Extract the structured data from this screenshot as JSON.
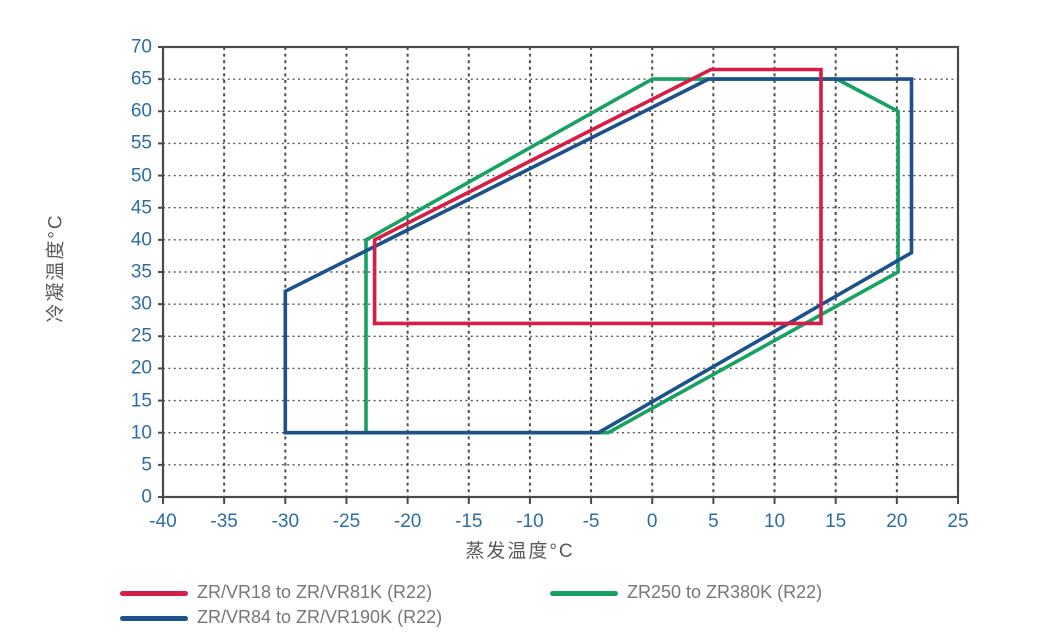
{
  "axes": {
    "x_title": "蒸发温度°C",
    "y_title": "冷凝温度°C"
  },
  "legend": {
    "items": [
      {
        "label": "ZR/VR18 to ZR/VR81K (R22)",
        "color": "#d51d45"
      },
      {
        "label": "ZR/VR84 to ZR/VR190K (R22)",
        "color": "#1c5189"
      },
      {
        "label": "ZR250 to ZR380K (R22)",
        "color": "#17a163"
      }
    ]
  },
  "colors": {
    "tick_text": "#2e6ca6",
    "axis_text": "#58595b",
    "legend_text": "#76777a",
    "border": "#4a4a4a",
    "grid": "#2f2f2f"
  },
  "chart_data": {
    "type": "line",
    "title": "",
    "xlabel": "蒸发温度°C",
    "ylabel": "冷凝温度°C",
    "xlim": [
      -40,
      25
    ],
    "ylim": [
      0,
      70
    ],
    "xticks": [
      -40,
      -35,
      -30,
      -25,
      -20,
      -15,
      -10,
      -5,
      0,
      5,
      10,
      15,
      20,
      25
    ],
    "yticks": [
      0,
      5,
      10,
      15,
      20,
      25,
      30,
      35,
      40,
      45,
      50,
      55,
      60,
      65,
      70
    ],
    "grid": true,
    "legend_position": "bottom",
    "series": [
      {
        "name": "ZR/VR18 to ZR/VR81K (R22)",
        "color": "#d51d45",
        "closed": true,
        "points": [
          [
            -22.7,
            40
          ],
          [
            4.8,
            66.5
          ],
          [
            13.8,
            66.5
          ],
          [
            13.8,
            27
          ],
          [
            -22.7,
            27
          ]
        ]
      },
      {
        "name": "ZR/VR84 to ZR/VR190K (R22)",
        "color": "#1c5189",
        "closed": true,
        "points": [
          [
            -30,
            32
          ],
          [
            4.6,
            65
          ],
          [
            21.2,
            65
          ],
          [
            21.2,
            38
          ],
          [
            -4.4,
            10
          ],
          [
            -30,
            10
          ]
        ]
      },
      {
        "name": "ZR250 to ZR380K (R22)",
        "color": "#17a163",
        "closed": true,
        "points": [
          [
            -23.4,
            40
          ],
          [
            0,
            65
          ],
          [
            15.1,
            65
          ],
          [
            20.1,
            60
          ],
          [
            20.1,
            35
          ],
          [
            -3.6,
            10
          ],
          [
            -23.4,
            10
          ]
        ]
      }
    ]
  }
}
